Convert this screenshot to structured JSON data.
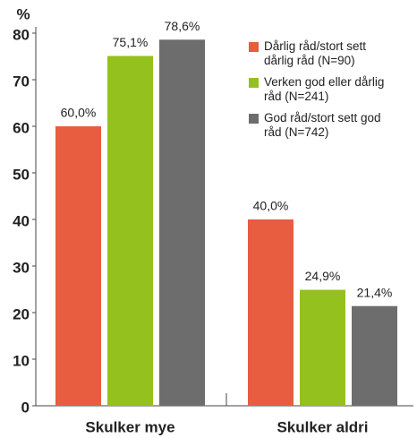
{
  "chart_data": {
    "type": "bar",
    "y_label": "%",
    "categories": [
      "Skulker mye",
      "Skulker aldri"
    ],
    "series": [
      {
        "name": "Dårlig råd/stort sett dårlig råd (N=90)",
        "color": "#e85c3f",
        "values": [
          60.0,
          40.0
        ],
        "value_labels": [
          "60,0%",
          "40,0%"
        ]
      },
      {
        "name": "Verken god eller dårlig råd (N=241)",
        "color": "#95c11f",
        "values": [
          75.1,
          24.9
        ],
        "value_labels": [
          "75,1%",
          "24,9%"
        ]
      },
      {
        "name": "God råd/stort sett god råd (N=742)",
        "color": "#6d6d6d",
        "values": [
          78.6,
          21.4
        ],
        "value_labels": [
          "78,6%",
          "21,4%"
        ]
      }
    ],
    "ylim": [
      0,
      80
    ],
    "yticks": [
      0,
      10,
      20,
      30,
      40,
      50,
      60,
      70,
      80
    ],
    "legend": "upper right"
  }
}
